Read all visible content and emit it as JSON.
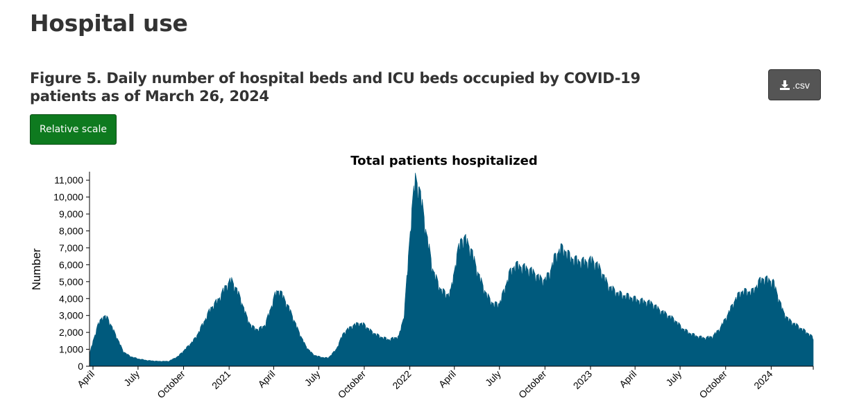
{
  "section": {
    "title": "Hospital use"
  },
  "figure": {
    "title": "Figure 5. Daily number of hospital beds and ICU beds occupied by COVID-19 patients as of March 26, 2024",
    "csv_button_label": ".csv",
    "csv_icon": "download-icon",
    "scale_button_label": "Relative scale"
  },
  "colors": {
    "series": "#005a7d",
    "axis": "#000000",
    "scale_button": "#0e7a1f",
    "csv_button": "#555555"
  },
  "chart_data": {
    "type": "area",
    "title": "Total patients hospitalized",
    "xlabel": "",
    "ylabel": "Number",
    "xlim": [
      "2020-03-25",
      "2024-03-26"
    ],
    "ylim": [
      0,
      11500
    ],
    "yticks": [
      0,
      1000,
      2000,
      3000,
      4000,
      5000,
      6000,
      7000,
      8000,
      9000,
      10000,
      11000
    ],
    "ytick_labels": [
      "0",
      "1,000",
      "2,000",
      "3,000",
      "4,000",
      "5,000",
      "6,000",
      "7,000",
      "8,000",
      "9,000",
      "10,000",
      "11,000"
    ],
    "xticks": [
      {
        "date": "2020-04-01",
        "label": "April"
      },
      {
        "date": "2020-07-01",
        "label": "July"
      },
      {
        "date": "2020-10-01",
        "label": "October"
      },
      {
        "date": "2021-01-01",
        "label": "2021"
      },
      {
        "date": "2021-04-01",
        "label": "April"
      },
      {
        "date": "2021-07-01",
        "label": "July"
      },
      {
        "date": "2021-10-01",
        "label": "October"
      },
      {
        "date": "2022-01-01",
        "label": "2022"
      },
      {
        "date": "2022-04-01",
        "label": "April"
      },
      {
        "date": "2022-07-01",
        "label": "July"
      },
      {
        "date": "2022-10-01",
        "label": "October"
      },
      {
        "date": "2023-01-01",
        "label": "2023"
      },
      {
        "date": "2023-04-01",
        "label": "April"
      },
      {
        "date": "2023-07-01",
        "label": "July"
      },
      {
        "date": "2023-10-01",
        "label": "October"
      },
      {
        "date": "2024-01-01",
        "label": "2024"
      }
    ],
    "grid": false,
    "legend": "none",
    "series": [
      {
        "x": [
          "2020-03-25",
          "2020-04-01",
          "2020-04-10",
          "2020-04-20",
          "2020-05-01",
          "2020-05-10",
          "2020-05-20",
          "2020-06-01",
          "2020-06-15",
          "2020-07-01",
          "2020-07-20",
          "2020-08-10",
          "2020-09-01",
          "2020-09-20",
          "2020-10-10",
          "2020-10-25",
          "2020-11-10",
          "2020-11-25",
          "2020-12-10",
          "2020-12-25",
          "2021-01-05",
          "2021-01-15",
          "2021-01-25",
          "2021-02-05",
          "2021-02-15",
          "2021-03-01",
          "2021-03-15",
          "2021-03-25",
          "2021-04-05",
          "2021-04-12",
          "2021-04-22",
          "2021-05-05",
          "2021-05-20",
          "2021-06-05",
          "2021-06-20",
          "2021-07-05",
          "2021-07-20",
          "2021-08-05",
          "2021-08-20",
          "2021-09-05",
          "2021-09-20",
          "2021-10-01",
          "2021-10-15",
          "2021-11-01",
          "2021-11-20",
          "2021-12-10",
          "2021-12-20",
          "2021-12-28",
          "2022-01-05",
          "2022-01-12",
          "2022-01-20",
          "2022-02-01",
          "2022-02-15",
          "2022-03-01",
          "2022-03-15",
          "2022-03-25",
          "2022-04-05",
          "2022-04-15",
          "2022-04-25",
          "2022-05-05",
          "2022-05-20",
          "2022-06-05",
          "2022-06-20",
          "2022-07-01",
          "2022-07-10",
          "2022-07-20",
          "2022-08-01",
          "2022-08-15",
          "2022-09-01",
          "2022-09-10",
          "2022-09-20",
          "2022-10-01",
          "2022-10-10",
          "2022-10-20",
          "2022-11-01",
          "2022-11-10",
          "2022-11-20",
          "2022-12-01",
          "2022-12-15",
          "2022-12-25",
          "2023-01-05",
          "2023-01-20",
          "2023-02-05",
          "2023-02-20",
          "2023-03-05",
          "2023-03-20",
          "2023-04-05",
          "2023-04-20",
          "2023-05-05",
          "2023-05-20",
          "2023-06-05",
          "2023-06-20",
          "2023-07-05",
          "2023-07-20",
          "2023-08-05",
          "2023-08-20",
          "2023-09-05",
          "2023-09-20",
          "2023-10-05",
          "2023-10-20",
          "2023-11-01",
          "2023-11-15",
          "2023-11-25",
          "2023-12-05",
          "2023-12-15",
          "2023-12-25",
          "2024-01-05",
          "2024-01-15",
          "2024-01-25",
          "2024-02-05",
          "2024-02-20",
          "2024-03-05",
          "2024-03-15",
          "2024-03-26"
        ],
        "values": [
          700,
          1500,
          2400,
          3000,
          2900,
          2300,
          1700,
          900,
          600,
          450,
          350,
          300,
          300,
          600,
          1200,
          1700,
          2600,
          3500,
          4000,
          4800,
          5200,
          4700,
          4000,
          3000,
          2400,
          2200,
          2500,
          3400,
          4400,
          4600,
          4100,
          3300,
          2200,
          1200,
          700,
          550,
          500,
          1000,
          2000,
          2400,
          2600,
          2500,
          2100,
          1800,
          1600,
          1800,
          3000,
          6000,
          9500,
          11200,
          10800,
          8500,
          6000,
          4800,
          4300,
          4500,
          6500,
          7700,
          7600,
          7000,
          5500,
          4300,
          3700,
          3800,
          4500,
          5500,
          6100,
          6000,
          5800,
          5600,
          5300,
          5200,
          5600,
          6500,
          7100,
          7000,
          6600,
          6400,
          6300,
          6300,
          6400,
          5900,
          4900,
          4500,
          4300,
          4200,
          4000,
          3900,
          3800,
          3400,
          3100,
          2800,
          2300,
          2000,
          1800,
          1700,
          1800,
          2300,
          3100,
          4000,
          4500,
          4500,
          4500,
          5000,
          5300,
          5200,
          5100,
          4200,
          3300,
          2800,
          2500,
          2200,
          2000,
          1700
        ]
      }
    ]
  }
}
